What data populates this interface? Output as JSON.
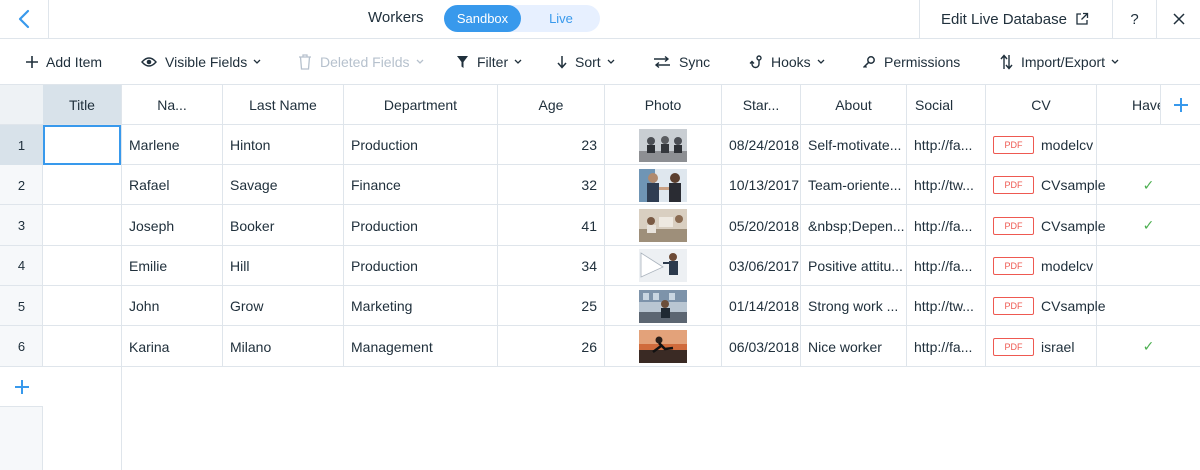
{
  "header": {
    "title": "Workers",
    "env_sandbox": "Sandbox",
    "env_live": "Live",
    "edit_live": "Edit Live Database",
    "help": "?"
  },
  "toolbar": {
    "add_item": "Add Item",
    "visible_fields": "Visible Fields",
    "deleted_fields": "Deleted Fields",
    "filter": "Filter",
    "sort": "Sort",
    "sync": "Sync",
    "hooks": "Hooks",
    "permissions": "Permissions",
    "import_export": "Import/Export"
  },
  "columns": [
    "Title",
    "Na...",
    "Last Name",
    "Department",
    "Age",
    "Photo",
    "Star...",
    "About",
    "Social",
    "CV",
    "Have"
  ],
  "rows": [
    {
      "num": "1",
      "title": "",
      "name": "Marlene",
      "last": "Hinton",
      "dept": "Production",
      "age": "23",
      "photo": "meeting-photo",
      "start": "08/24/2018",
      "about": "Self-motivate...",
      "social": "http://fa...",
      "cv_badge": "PDF",
      "cv": "modelcv",
      "have": ""
    },
    {
      "num": "2",
      "title": "",
      "name": "Rafael",
      "last": "Savage",
      "dept": "Finance",
      "age": "32",
      "photo": "handshake-photo",
      "start": "10/13/2017",
      "about": "Team-oriente...",
      "social": "http://tw...",
      "cv_badge": "PDF",
      "cv": "CVsample",
      "have": "✓"
    },
    {
      "num": "3",
      "title": "",
      "name": "Joseph",
      "last": "Booker",
      "dept": "Production",
      "age": "41",
      "photo": "desk-photo",
      "start": "05/20/2018",
      "about": "&nbsp;Depen...",
      "social": "http://fa...",
      "cv_badge": "PDF",
      "cv": "CVsample",
      "have": "✓"
    },
    {
      "num": "4",
      "title": "",
      "name": "Emilie",
      "last": "Hill",
      "dept": "Production",
      "age": "34",
      "photo": "presentation-photo",
      "start": "03/06/2017",
      "about": "Positive attitu...",
      "social": "http://fa...",
      "cv_badge": "PDF",
      "cv": "modelcv",
      "have": ""
    },
    {
      "num": "5",
      "title": "",
      "name": "John",
      "last": "Grow",
      "dept": "Marketing",
      "age": "25",
      "photo": "office-photo",
      "start": "01/14/2018",
      "about": "Strong work ...",
      "social": "http://tw...",
      "cv_badge": "PDF",
      "cv": "CVsample",
      "have": ""
    },
    {
      "num": "6",
      "title": "",
      "name": "Karina",
      "last": "Milano",
      "dept": "Management",
      "age": "26",
      "photo": "runner-photo",
      "start": "06/03/2018",
      "about": "Nice worker",
      "social": "http://fa...",
      "cv_badge": "PDF",
      "cv": "israel",
      "have": "✓"
    }
  ],
  "colors": {
    "accent": "#3899ec",
    "pdf": "#ee5951",
    "check": "#4caf50"
  }
}
